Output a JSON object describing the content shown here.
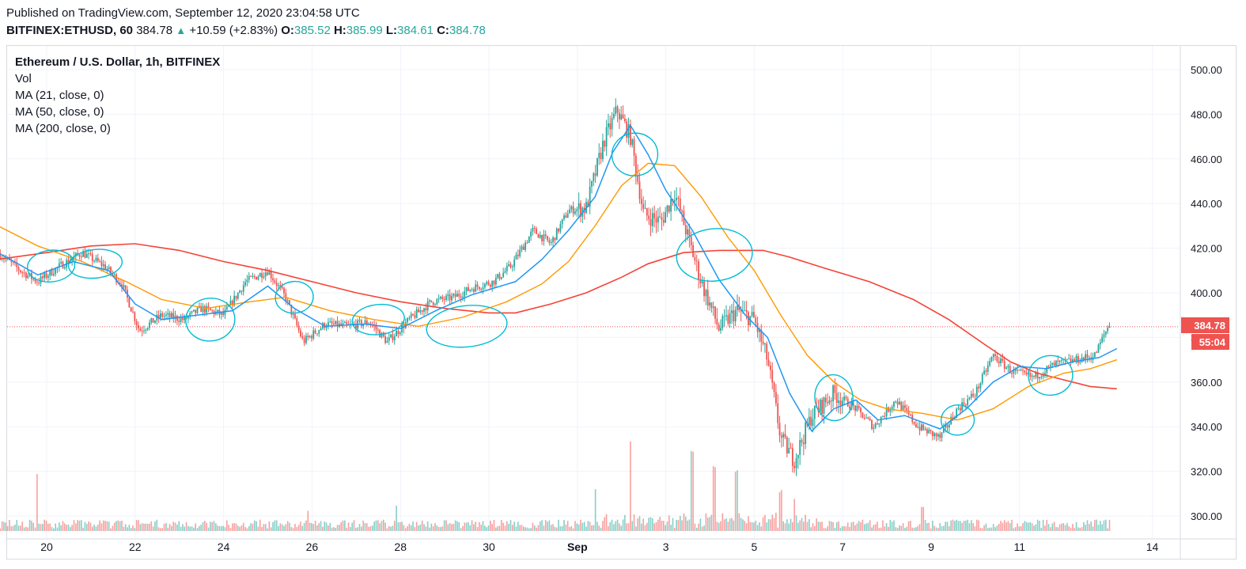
{
  "header": {
    "published": "Published on TradingView.com, September 12, 2020 23:04:58 UTC",
    "symbol": "BITFINEX:ETHUSD, 60",
    "last": "384.78",
    "arrow": "▲",
    "change": "+10.59 (+2.83%)",
    "o_label": "O:",
    "o_value": "385.52",
    "h_label": "H:",
    "h_value": "385.99",
    "l_label": "L:",
    "l_value": "384.61",
    "c_label": "C:",
    "c_value": "384.78"
  },
  "legend": {
    "title": "Ethereum / U.S. Dollar, 1h, BITFINEX",
    "vol": "Vol",
    "ma21": "MA (21, close, 0)",
    "ma50": "MA (50, close, 0)",
    "ma200": "MA (200, close, 0)"
  },
  "price_badge": {
    "price": "384.78",
    "countdown": "55:04"
  },
  "colors": {
    "up": "#26a69a",
    "down": "#ef5350",
    "ma21": "#2196f3",
    "ma50": "#ff9800",
    "ma200": "#f44336",
    "annotation": "#00bcd4"
  },
  "chart_data": {
    "type": "candlestick",
    "interval": "1h",
    "ylim": [
      292,
      505
    ],
    "y_ticks": [
      300,
      320,
      340,
      360,
      380,
      400,
      420,
      440,
      460,
      480,
      500
    ],
    "x_ticks": [
      {
        "label": "20",
        "day": 20
      },
      {
        "label": "22",
        "day": 22
      },
      {
        "label": "24",
        "day": 24
      },
      {
        "label": "26",
        "day": 26
      },
      {
        "label": "28",
        "day": 28
      },
      {
        "label": "30",
        "day": 30
      },
      {
        "label": "Sep",
        "day": 32,
        "bold": true
      },
      {
        "label": "3",
        "day": 34
      },
      {
        "label": "5",
        "day": 36
      },
      {
        "label": "7",
        "day": 38
      },
      {
        "label": "9",
        "day": 40
      },
      {
        "label": "11",
        "day": 42
      },
      {
        "label": "14",
        "day": 45
      }
    ],
    "last_price": 384.78,
    "price_path": [
      {
        "day": 18.9,
        "price": 418
      },
      {
        "day": 19.4,
        "price": 410
      },
      {
        "day": 19.8,
        "price": 405
      },
      {
        "day": 20.3,
        "price": 412
      },
      {
        "day": 20.8,
        "price": 418
      },
      {
        "day": 21.3,
        "price": 412
      },
      {
        "day": 21.7,
        "price": 404
      },
      {
        "day": 22.1,
        "price": 383
      },
      {
        "day": 22.6,
        "price": 390
      },
      {
        "day": 23.1,
        "price": 388
      },
      {
        "day": 23.5,
        "price": 393
      },
      {
        "day": 24.0,
        "price": 390
      },
      {
        "day": 24.5,
        "price": 405
      },
      {
        "day": 25.0,
        "price": 410
      },
      {
        "day": 25.4,
        "price": 398
      },
      {
        "day": 25.8,
        "price": 378
      },
      {
        "day": 26.3,
        "price": 386
      },
      {
        "day": 26.8,
        "price": 385
      },
      {
        "day": 27.3,
        "price": 387
      },
      {
        "day": 27.7,
        "price": 378
      },
      {
        "day": 28.2,
        "price": 388
      },
      {
        "day": 28.7,
        "price": 396
      },
      {
        "day": 29.2,
        "price": 398
      },
      {
        "day": 29.6,
        "price": 402
      },
      {
        "day": 30.1,
        "price": 405
      },
      {
        "day": 30.5,
        "price": 412
      },
      {
        "day": 31.0,
        "price": 428
      },
      {
        "day": 31.4,
        "price": 422
      },
      {
        "day": 31.8,
        "price": 437
      },
      {
        "day": 32.2,
        "price": 438
      },
      {
        "day": 32.6,
        "price": 468
      },
      {
        "day": 32.9,
        "price": 482
      },
      {
        "day": 33.2,
        "price": 470
      },
      {
        "day": 33.5,
        "price": 435
      },
      {
        "day": 33.9,
        "price": 432
      },
      {
        "day": 34.2,
        "price": 445
      },
      {
        "day": 34.5,
        "price": 425
      },
      {
        "day": 34.8,
        "price": 405
      },
      {
        "day": 35.2,
        "price": 384
      },
      {
        "day": 35.6,
        "price": 392
      },
      {
        "day": 36.0,
        "price": 388
      },
      {
        "day": 36.3,
        "price": 370
      },
      {
        "day": 36.6,
        "price": 335
      },
      {
        "day": 36.9,
        "price": 325
      },
      {
        "day": 37.3,
        "price": 345
      },
      {
        "day": 37.8,
        "price": 355
      },
      {
        "day": 38.3,
        "price": 348
      },
      {
        "day": 38.7,
        "price": 340
      },
      {
        "day": 39.2,
        "price": 352
      },
      {
        "day": 39.7,
        "price": 340
      },
      {
        "day": 40.2,
        "price": 335
      },
      {
        "day": 40.6,
        "price": 348
      },
      {
        "day": 41.0,
        "price": 355
      },
      {
        "day": 41.4,
        "price": 372
      },
      {
        "day": 41.8,
        "price": 365
      },
      {
        "day": 42.3,
        "price": 362
      },
      {
        "day": 42.8,
        "price": 368
      },
      {
        "day": 43.3,
        "price": 370
      },
      {
        "day": 43.7,
        "price": 372
      },
      {
        "day": 44.0,
        "price": 385
      }
    ],
    "ma21": [
      {
        "day": 18.9,
        "price": 418
      },
      {
        "day": 19.8,
        "price": 408
      },
      {
        "day": 20.6,
        "price": 414
      },
      {
        "day": 21.4,
        "price": 410
      },
      {
        "day": 22.0,
        "price": 395
      },
      {
        "day": 22.6,
        "price": 388
      },
      {
        "day": 23.4,
        "price": 390
      },
      {
        "day": 24.2,
        "price": 392
      },
      {
        "day": 25.0,
        "price": 403
      },
      {
        "day": 25.6,
        "price": 393
      },
      {
        "day": 26.3,
        "price": 385
      },
      {
        "day": 27.2,
        "price": 386
      },
      {
        "day": 28.0,
        "price": 384
      },
      {
        "day": 28.8,
        "price": 392
      },
      {
        "day": 29.6,
        "price": 399
      },
      {
        "day": 30.6,
        "price": 405
      },
      {
        "day": 31.2,
        "price": 415
      },
      {
        "day": 31.8,
        "price": 428
      },
      {
        "day": 32.4,
        "price": 443
      },
      {
        "day": 32.8,
        "price": 463
      },
      {
        "day": 33.2,
        "price": 475
      },
      {
        "day": 33.6,
        "price": 462
      },
      {
        "day": 34.0,
        "price": 446
      },
      {
        "day": 34.6,
        "price": 428
      },
      {
        "day": 35.2,
        "price": 406
      },
      {
        "day": 35.8,
        "price": 390
      },
      {
        "day": 36.3,
        "price": 380
      },
      {
        "day": 36.8,
        "price": 355
      },
      {
        "day": 37.3,
        "price": 338
      },
      {
        "day": 37.8,
        "price": 348
      },
      {
        "day": 38.3,
        "price": 352
      },
      {
        "day": 38.8,
        "price": 343
      },
      {
        "day": 39.4,
        "price": 345
      },
      {
        "day": 40.2,
        "price": 339
      },
      {
        "day": 40.8,
        "price": 348
      },
      {
        "day": 41.4,
        "price": 360
      },
      {
        "day": 42.0,
        "price": 367
      },
      {
        "day": 42.6,
        "price": 366
      },
      {
        "day": 43.2,
        "price": 369
      },
      {
        "day": 43.8,
        "price": 371
      },
      {
        "day": 44.2,
        "price": 375
      }
    ],
    "ma50": [
      {
        "day": 18.9,
        "price": 430
      },
      {
        "day": 19.8,
        "price": 421
      },
      {
        "day": 20.8,
        "price": 414
      },
      {
        "day": 21.8,
        "price": 405
      },
      {
        "day": 22.6,
        "price": 397
      },
      {
        "day": 23.6,
        "price": 393
      },
      {
        "day": 24.6,
        "price": 396
      },
      {
        "day": 25.4,
        "price": 398
      },
      {
        "day": 26.4,
        "price": 392
      },
      {
        "day": 27.4,
        "price": 388
      },
      {
        "day": 28.4,
        "price": 385
      },
      {
        "day": 29.4,
        "price": 389
      },
      {
        "day": 30.4,
        "price": 396
      },
      {
        "day": 31.2,
        "price": 404
      },
      {
        "day": 31.8,
        "price": 414
      },
      {
        "day": 32.4,
        "price": 430
      },
      {
        "day": 33.0,
        "price": 448
      },
      {
        "day": 33.6,
        "price": 458
      },
      {
        "day": 34.2,
        "price": 457
      },
      {
        "day": 34.8,
        "price": 443
      },
      {
        "day": 35.4,
        "price": 425
      },
      {
        "day": 36.0,
        "price": 410
      },
      {
        "day": 36.6,
        "price": 390
      },
      {
        "day": 37.2,
        "price": 372
      },
      {
        "day": 37.8,
        "price": 360
      },
      {
        "day": 38.4,
        "price": 352
      },
      {
        "day": 39.0,
        "price": 348
      },
      {
        "day": 39.8,
        "price": 346
      },
      {
        "day": 40.6,
        "price": 343
      },
      {
        "day": 41.4,
        "price": 348
      },
      {
        "day": 42.2,
        "price": 358
      },
      {
        "day": 43.0,
        "price": 364
      },
      {
        "day": 43.6,
        "price": 366
      },
      {
        "day": 44.2,
        "price": 370
      }
    ],
    "ma200": [
      {
        "day": 18.9,
        "price": 415
      },
      {
        "day": 20.0,
        "price": 418
      },
      {
        "day": 21.0,
        "price": 421
      },
      {
        "day": 22.0,
        "price": 422
      },
      {
        "day": 23.0,
        "price": 419
      },
      {
        "day": 24.0,
        "price": 414
      },
      {
        "day": 25.0,
        "price": 410
      },
      {
        "day": 26.0,
        "price": 405
      },
      {
        "day": 27.0,
        "price": 400
      },
      {
        "day": 28.0,
        "price": 396
      },
      {
        "day": 29.0,
        "price": 393
      },
      {
        "day": 30.0,
        "price": 391
      },
      {
        "day": 30.6,
        "price": 391
      },
      {
        "day": 31.4,
        "price": 395
      },
      {
        "day": 32.2,
        "price": 400
      },
      {
        "day": 33.0,
        "price": 407
      },
      {
        "day": 33.6,
        "price": 413
      },
      {
        "day": 34.4,
        "price": 418
      },
      {
        "day": 35.2,
        "price": 419
      },
      {
        "day": 36.2,
        "price": 419
      },
      {
        "day": 36.8,
        "price": 416
      },
      {
        "day": 37.6,
        "price": 411
      },
      {
        "day": 38.6,
        "price": 405
      },
      {
        "day": 39.6,
        "price": 397
      },
      {
        "day": 40.4,
        "price": 388
      },
      {
        "day": 41.2,
        "price": 377
      },
      {
        "day": 41.8,
        "price": 369
      },
      {
        "day": 42.4,
        "price": 364
      },
      {
        "day": 43.0,
        "price": 361
      },
      {
        "day": 43.6,
        "price": 358
      },
      {
        "day": 44.2,
        "price": 357
      }
    ],
    "volume_spikes": [
      {
        "day": 19.8,
        "vol": 0.45
      },
      {
        "day": 25.9,
        "vol": 0.16
      },
      {
        "day": 27.9,
        "vol": 0.2
      },
      {
        "day": 32.4,
        "vol": 0.33
      },
      {
        "day": 33.2,
        "vol": 0.7
      },
      {
        "day": 34.6,
        "vol": 0.6
      },
      {
        "day": 35.1,
        "vol": 0.5
      },
      {
        "day": 35.6,
        "vol": 0.42
      },
      {
        "day": 36.6,
        "vol": 0.3
      },
      {
        "day": 36.9,
        "vol": 0.24
      },
      {
        "day": 39.8,
        "vol": 0.19
      }
    ],
    "annotation_circles": [
      {
        "day": 20.1,
        "price": 412
      },
      {
        "day": 21.1,
        "price": 413
      },
      {
        "day": 23.7,
        "price": 388
      },
      {
        "day": 25.6,
        "price": 398
      },
      {
        "day": 27.5,
        "price": 388
      },
      {
        "day": 29.5,
        "price": 385
      },
      {
        "day": 33.3,
        "price": 462
      },
      {
        "day": 35.1,
        "price": 417
      },
      {
        "day": 37.8,
        "price": 353
      },
      {
        "day": 40.6,
        "price": 343
      },
      {
        "day": 42.7,
        "price": 363
      }
    ]
  }
}
